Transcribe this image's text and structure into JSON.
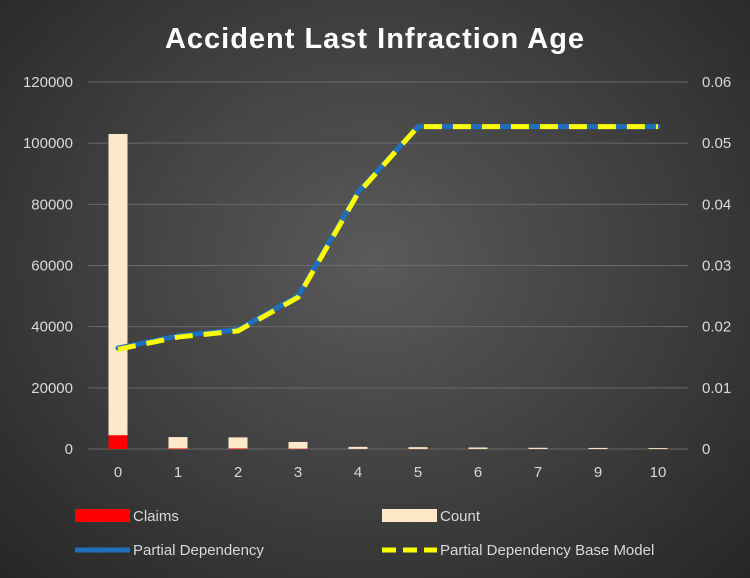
{
  "chart_data": {
    "type": "bar",
    "title": "Accident Last Infraction Age",
    "categories": [
      "0",
      "1",
      "2",
      "3",
      "4",
      "5",
      "6",
      "7",
      "9",
      "10"
    ],
    "series": [
      {
        "name": "Claims",
        "type": "bar",
        "axis": "left",
        "color": "#ff0000",
        "values": [
          4500,
          180,
          180,
          110,
          30,
          20,
          15,
          12,
          10,
          10
        ]
      },
      {
        "name": "Count",
        "type": "bar",
        "axis": "left",
        "color": "#fde9c8",
        "values": [
          103000,
          3900,
          3800,
          2300,
          700,
          600,
          500,
          400,
          350,
          300
        ]
      },
      {
        "name": "Partial Dependency",
        "type": "line",
        "axis": "right",
        "color": "#1f6fbf",
        "values": [
          0.0165,
          0.0185,
          0.0195,
          0.025,
          0.042,
          0.0527,
          0.0527,
          0.0527,
          0.0527,
          0.0527
        ]
      },
      {
        "name": "Partial Dependency Base Model",
        "type": "line",
        "axis": "right",
        "color": "#ffff00",
        "dash": true,
        "values": [
          0.0163,
          0.0183,
          0.0193,
          0.0248,
          0.0418,
          0.0527,
          0.0527,
          0.0527,
          0.0527,
          0.0527
        ]
      }
    ],
    "y_left": {
      "min": 0,
      "max": 120000,
      "ticks": [
        "0",
        "20000",
        "40000",
        "60000",
        "80000",
        "100000",
        "120000"
      ]
    },
    "y_right": {
      "min": 0,
      "max": 0.06,
      "ticks": [
        "0",
        "0.01",
        "0.02",
        "0.03",
        "0.04",
        "0.05",
        "0.06"
      ]
    },
    "grid": true,
    "legend_position": "bottom"
  }
}
